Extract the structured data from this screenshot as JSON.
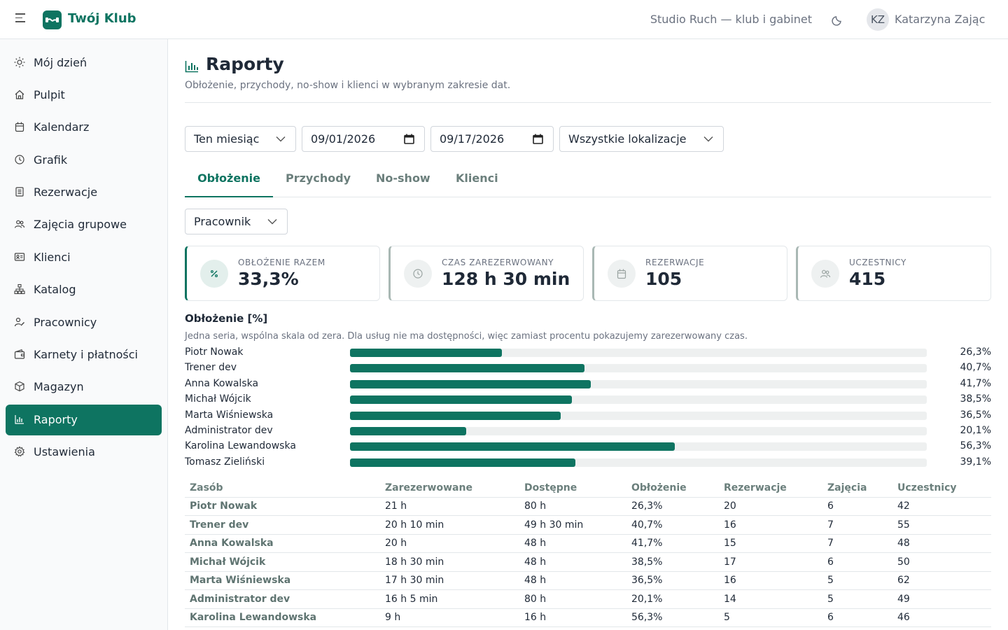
{
  "header": {
    "brand": "Twój Klub",
    "studio": "Studio Ruch — klub i gabinet",
    "user_initials": "KZ",
    "user_name": "Katarzyna Zając"
  },
  "sidebar": {
    "items": [
      {
        "label": "Mój dzień",
        "icon": "sun-icon"
      },
      {
        "label": "Pulpit",
        "icon": "home-icon"
      },
      {
        "label": "Kalendarz",
        "icon": "calendar-icon"
      },
      {
        "label": "Grafik",
        "icon": "clock-icon"
      },
      {
        "label": "Rezerwacje",
        "icon": "list-icon"
      },
      {
        "label": "Zajęcia grupowe",
        "icon": "users-icon"
      },
      {
        "label": "Klienci",
        "icon": "id-card-icon"
      },
      {
        "label": "Katalog",
        "icon": "sitemap-icon"
      },
      {
        "label": "Pracownicy",
        "icon": "staff-icon"
      },
      {
        "label": "Karnety i płatności",
        "icon": "wallet-icon"
      },
      {
        "label": "Magazyn",
        "icon": "box-icon"
      },
      {
        "label": "Raporty",
        "icon": "chart-icon"
      },
      {
        "label": "Ustawienia",
        "icon": "gear-icon"
      }
    ],
    "active": "Raporty"
  },
  "page": {
    "title": "Raporty",
    "subtitle": "Obłożenie, przychody, no-show i klienci w wybranym zakresie dat."
  },
  "filters": {
    "period": "Ten miesiąc",
    "date_from": "09/01/2026",
    "date_to": "09/17/2026",
    "location": "Wszystkie lokalizacje",
    "group_by": "Pracownik"
  },
  "tabs": [
    "Obłożenie",
    "Przychody",
    "No-show",
    "Klienci"
  ],
  "active_tab": "Obłożenie",
  "kpis": [
    {
      "label": "OBŁOŻENIE RAZEM",
      "value": "33,3%",
      "icon": "percent-icon"
    },
    {
      "label": "CZAS ZAREZERWOWANY",
      "value": "128 h 30 min",
      "icon": "clock-icon"
    },
    {
      "label": "REZERWACJE",
      "value": "105",
      "icon": "calendar-icon"
    },
    {
      "label": "UCZESTNICY",
      "value": "415",
      "icon": "users-icon"
    }
  ],
  "chart_section": {
    "title": "Obłożenie [%]",
    "description": "Jedna seria, wspólna skala od zera. Dla usług nie ma dostępności, więc zamiast procentu pokazujemy zarezerwowany czas."
  },
  "chart_data": {
    "type": "bar",
    "orientation": "horizontal",
    "title": "Obłożenie [%]",
    "categories": [
      "Piotr Nowak",
      "Trener dev",
      "Anna Kowalska",
      "Michał Wójcik",
      "Marta Wiśniewska",
      "Administrator dev",
      "Karolina Lewandowska",
      "Tomasz Zieliński"
    ],
    "values": [
      26.3,
      40.7,
      41.7,
      38.5,
      36.5,
      20.1,
      56.3,
      39.1
    ],
    "value_labels": [
      "26,3%",
      "40,7%",
      "41,7%",
      "38,5%",
      "36,5%",
      "20,1%",
      "56,3%",
      "39,1%"
    ],
    "xlim": [
      0,
      100
    ],
    "color": "#0e7461"
  },
  "table": {
    "columns": [
      "Zasób",
      "Zarezerwowane",
      "Dostępne",
      "Obłożenie",
      "Rezerwacje",
      "Zajęcia",
      "Uczestnicy"
    ],
    "rows": [
      [
        "Piotr Nowak",
        "21 h",
        "80 h",
        "26,3%",
        "20",
        "6",
        "42"
      ],
      [
        "Trener dev",
        "20 h 10 min",
        "49 h 30 min",
        "40,7%",
        "16",
        "7",
        "55"
      ],
      [
        "Anna Kowalska",
        "20 h",
        "48 h",
        "41,7%",
        "15",
        "7",
        "48"
      ],
      [
        "Michał Wójcik",
        "18 h 30 min",
        "48 h",
        "38,5%",
        "17",
        "6",
        "50"
      ],
      [
        "Marta Wiśniewska",
        "17 h 30 min",
        "48 h",
        "36,5%",
        "16",
        "5",
        "62"
      ],
      [
        "Administrator dev",
        "16 h 5 min",
        "80 h",
        "20,1%",
        "14",
        "5",
        "49"
      ],
      [
        "Karolina Lewandowska",
        "9 h",
        "16 h",
        "56,3%",
        "5",
        "6",
        "46"
      ]
    ]
  },
  "colors": {
    "accent": "#0e7461",
    "track": "#eef0f0"
  }
}
